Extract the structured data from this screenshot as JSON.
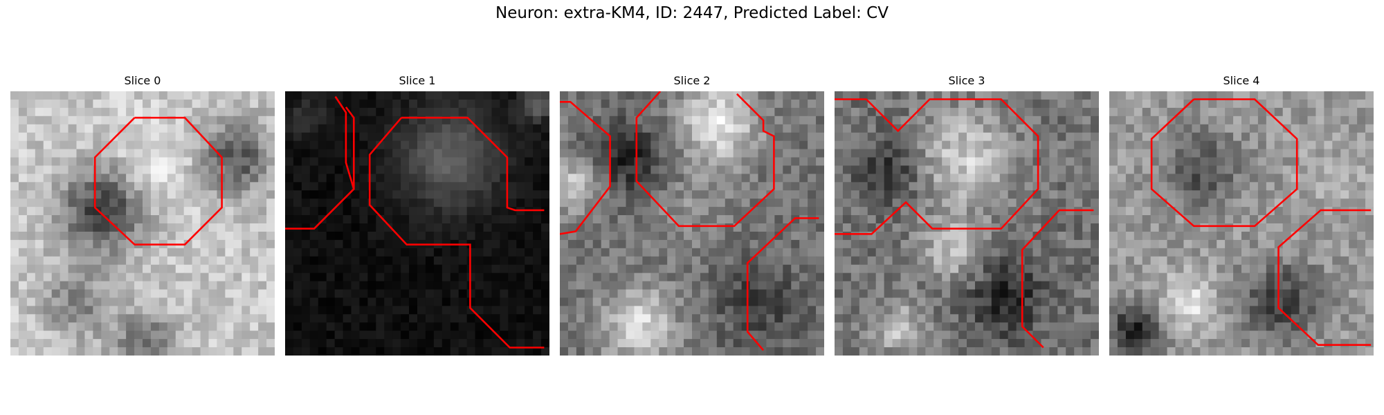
{
  "figure": {
    "title": "Neuron: extra-KM4, ID: 2447, Predicted Label: CV"
  },
  "panels": [
    {
      "title": "Slice 0"
    },
    {
      "title": "Slice 1"
    },
    {
      "title": "Slice 2"
    },
    {
      "title": "Slice 3"
    },
    {
      "title": "Slice 4"
    }
  ],
  "colors": {
    "contour": "#ff0000"
  }
}
